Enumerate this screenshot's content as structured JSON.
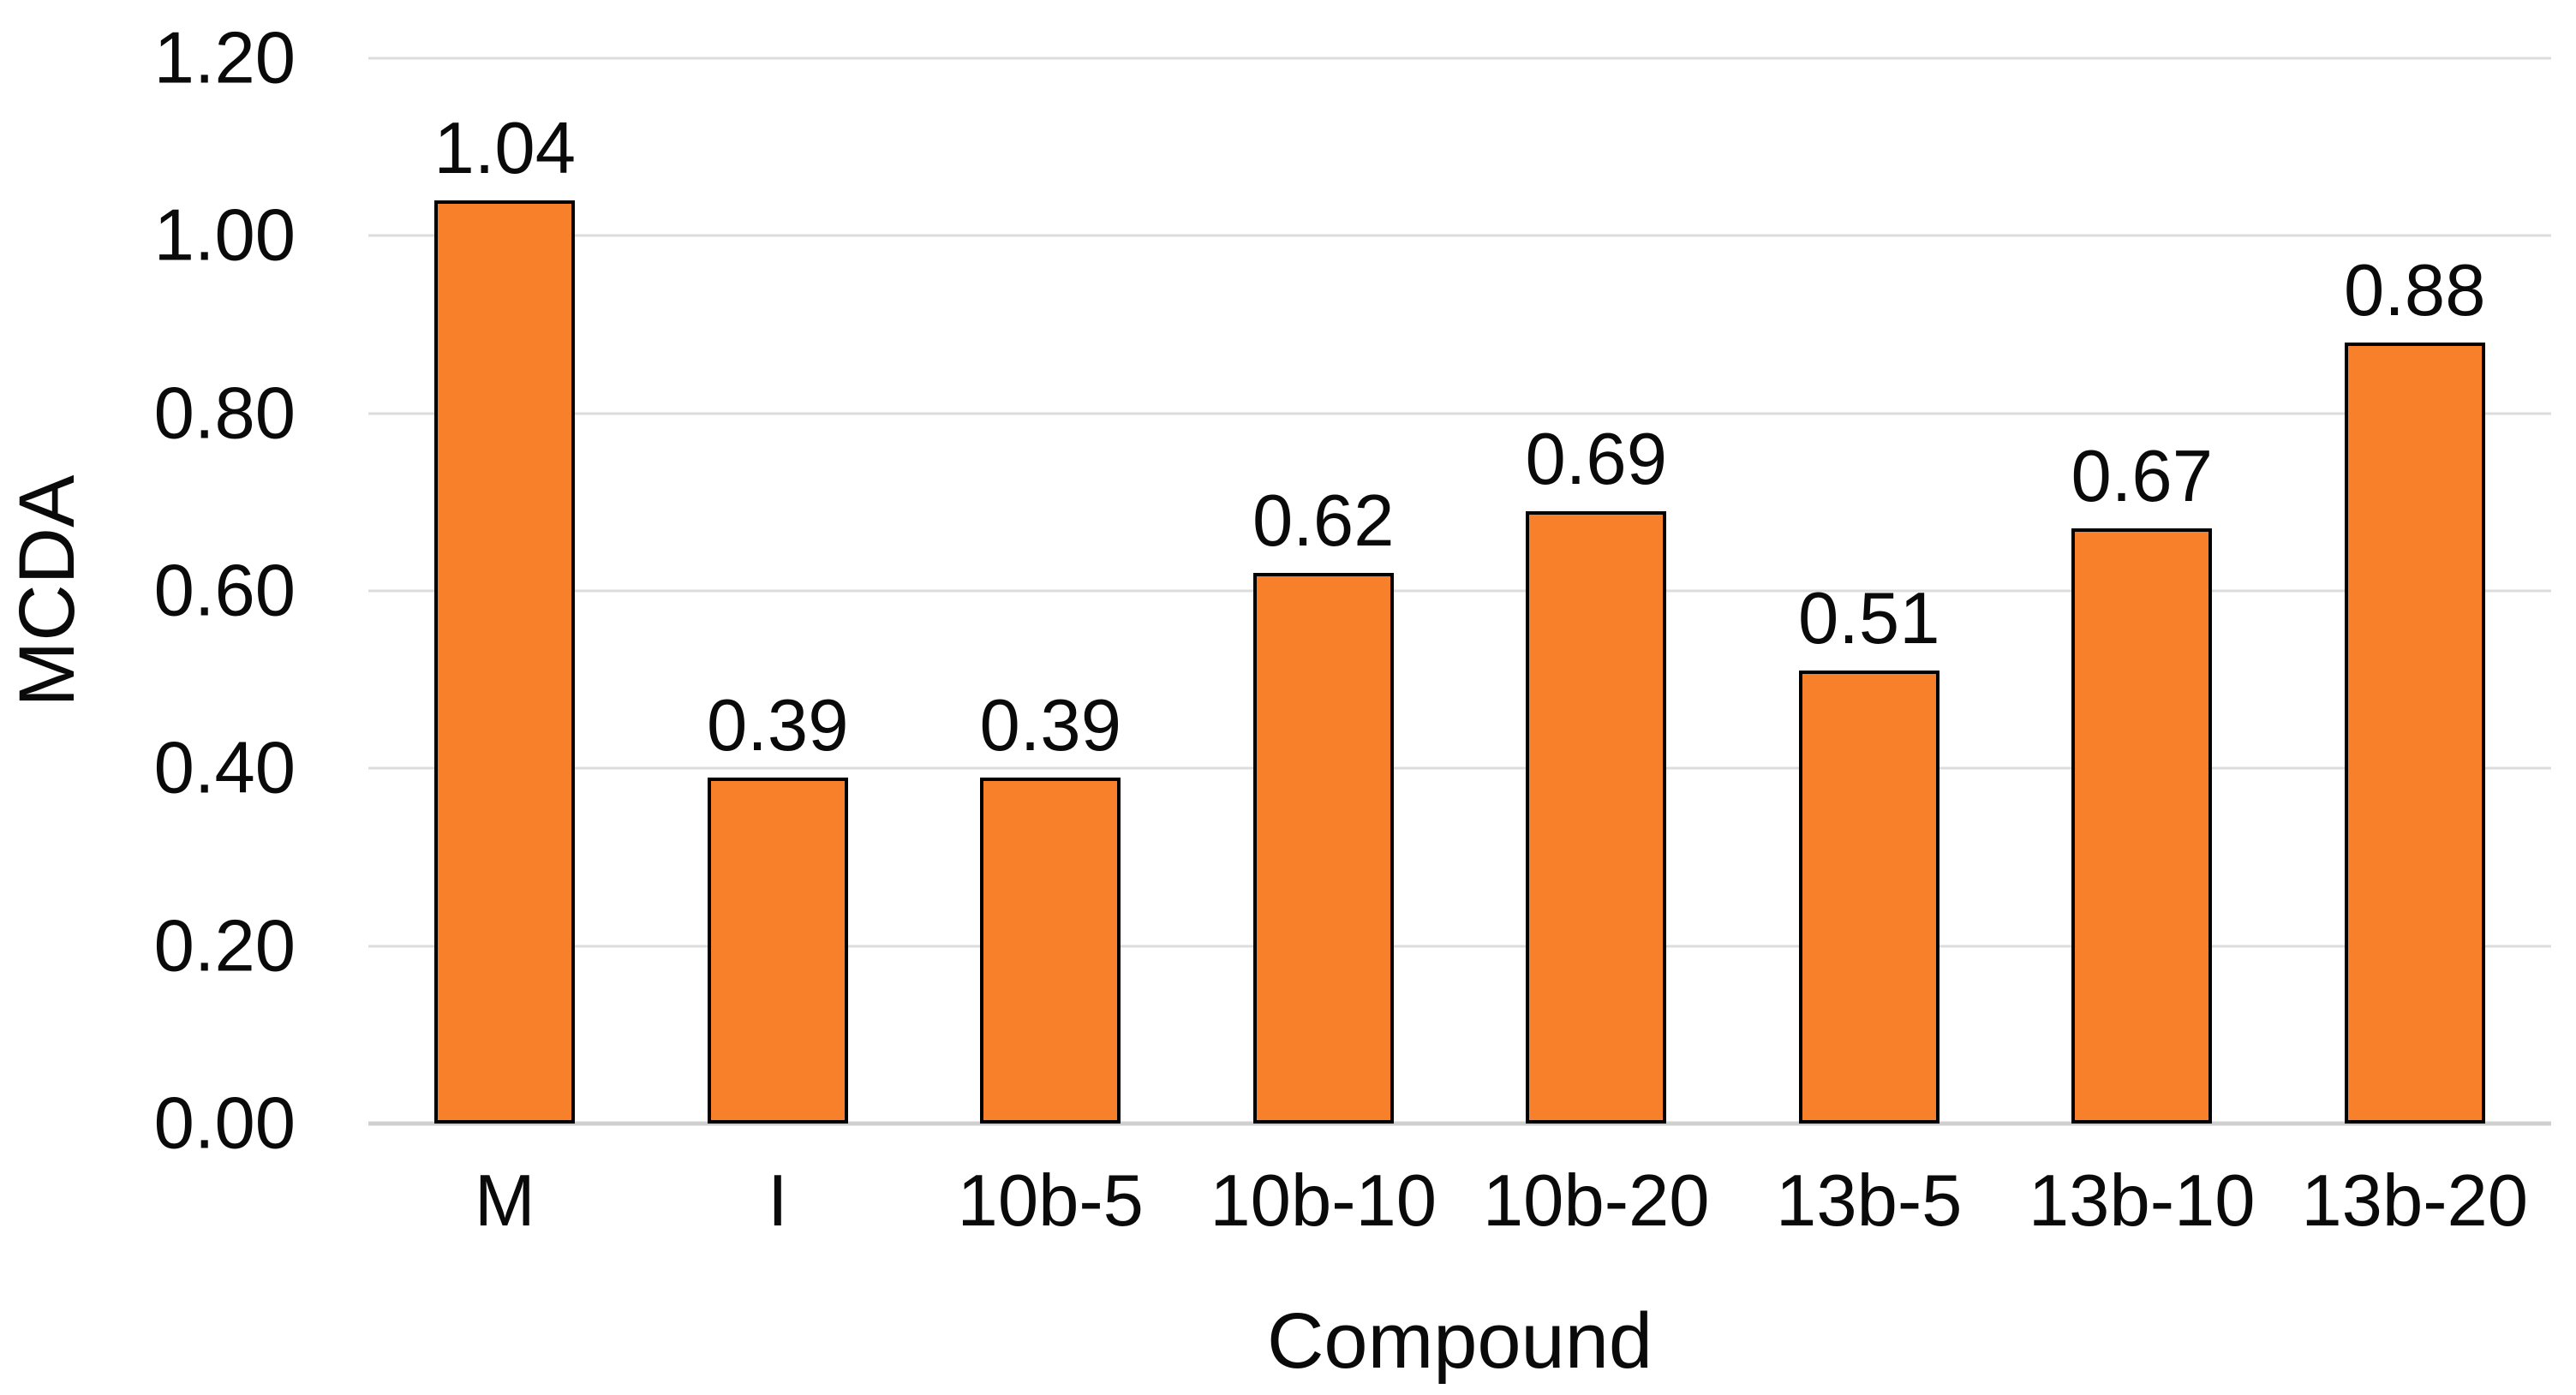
{
  "chart_data": {
    "type": "bar",
    "title": "",
    "xlabel": "Compound",
    "ylabel": "MCDA",
    "categories": [
      "M",
      "I",
      "10b-5",
      "10b-10",
      "10b-20",
      "13b-5",
      "13b-10",
      "13b-20"
    ],
    "values": [
      1.04,
      0.39,
      0.39,
      0.62,
      0.69,
      0.51,
      0.67,
      0.88
    ],
    "data_labels": [
      "1.04",
      "0.39",
      "0.39",
      "0.62",
      "0.69",
      "0.51",
      "0.67",
      "0.88"
    ],
    "ylim": [
      0,
      1.2
    ],
    "ytick_step": 0.2,
    "ytick_labels": [
      "0.00",
      "0.20",
      "0.40",
      "0.60",
      "0.80",
      "1.00",
      "1.20"
    ],
    "grid": true,
    "legend": "none",
    "bar_color": "#f8802b",
    "bar_border_color": "#000000",
    "gridline_color": "#dcdcdc",
    "axis_line_color": "#d0d0d0",
    "background_color": "#ffffff"
  }
}
